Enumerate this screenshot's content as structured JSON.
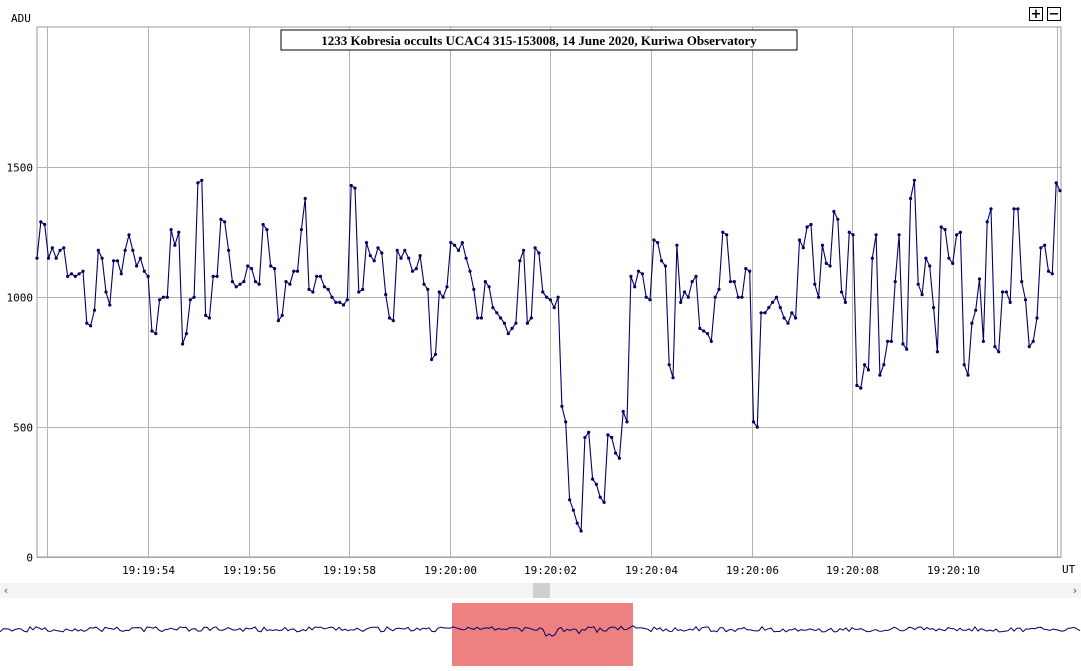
{
  "chart_data": {
    "type": "line",
    "title": "1233 Kobresia occults UCAC4 315-153008, 14 June 2020, Kuriwa Observatory",
    "ylabel": "ADU",
    "xlabel": "UT",
    "ylim": [
      0,
      1500
    ],
    "y_ticks": [
      0,
      500,
      1000,
      1500
    ],
    "x_tick_labels": [
      "19:19:54",
      "19:19:56",
      "19:19:58",
      "19:20:00",
      "19:20:02",
      "19:20:04",
      "19:20:06",
      "19:20:08",
      "19:20:10"
    ],
    "grid": true,
    "series": [
      {
        "values": [
          1150,
          1290,
          1280,
          1150,
          1190,
          1150,
          1180,
          1190,
          1080,
          1090,
          1080,
          1090,
          1100,
          900,
          890,
          950,
          1180,
          1150,
          1020,
          970,
          1140,
          1140,
          1090,
          1180,
          1240,
          1180,
          1120,
          1150,
          1100,
          1080,
          870,
          860,
          990,
          1000,
          1000,
          1260,
          1200,
          1250,
          820,
          860,
          990,
          1000,
          1440,
          1450,
          930,
          920,
          1080,
          1080,
          1300,
          1290,
          1180,
          1060,
          1040,
          1050,
          1060,
          1120,
          1110,
          1060,
          1050,
          1280,
          1260,
          1120,
          1110,
          910,
          930,
          1060,
          1050,
          1100,
          1100,
          1260,
          1380,
          1030,
          1020,
          1080,
          1080,
          1040,
          1030,
          1000,
          980,
          980,
          970,
          990,
          1430,
          1420,
          1020,
          1030,
          1210,
          1160,
          1140,
          1190,
          1170,
          1010,
          920,
          910,
          1180,
          1150,
          1180,
          1150,
          1100,
          1110,
          1160,
          1050,
          1030,
          760,
          780,
          1020,
          1000,
          1040,
          1210,
          1200,
          1180,
          1210,
          1150,
          1100,
          1030,
          920,
          920,
          1060,
          1040,
          960,
          940,
          920,
          900,
          860,
          880,
          900,
          1140,
          1180,
          900,
          920,
          1190,
          1170,
          1020,
          1000,
          990,
          960,
          1000,
          580,
          520,
          220,
          180,
          130,
          100,
          460,
          480,
          300,
          280,
          230,
          210,
          470,
          460,
          400,
          380,
          560,
          520,
          1080,
          1040,
          1100,
          1090,
          1000,
          990,
          1220,
          1210,
          1140,
          1120,
          740,
          690,
          1200,
          980,
          1020,
          1000,
          1060,
          1080,
          880,
          870,
          860,
          830,
          1000,
          1030,
          1250,
          1240,
          1060,
          1060,
          1000,
          1000,
          1110,
          1100,
          520,
          500,
          940,
          940,
          960,
          980,
          1000,
          960,
          920,
          900,
          940,
          920,
          1220,
          1190,
          1270,
          1280,
          1050,
          1000,
          1200,
          1130,
          1120,
          1330,
          1300,
          1020,
          980,
          1250,
          1240,
          660,
          650,
          740,
          720,
          1150,
          1240,
          700,
          740,
          830,
          830,
          1060,
          1240,
          820,
          800,
          1380,
          1450,
          1050,
          1010,
          1150,
          1120,
          960,
          790,
          1270,
          1260,
          1150,
          1130,
          1240,
          1250,
          740,
          700,
          900,
          950,
          1070,
          830,
          1290,
          1340,
          810,
          790,
          1020,
          1020,
          980,
          1340,
          1340,
          1060,
          990,
          810,
          830,
          920,
          1190,
          1200,
          1100,
          1090,
          1440,
          1410
        ]
      }
    ],
    "navigator_highlight_label": ""
  },
  "ui": {
    "zoom_in_label": "+",
    "zoom_out_label": "−",
    "scroll_left": "‹",
    "scroll_right": "›"
  },
  "colors": {
    "series": "#000066",
    "grid": "#b4b4b4",
    "navigator_highlight": "#ef8080"
  }
}
